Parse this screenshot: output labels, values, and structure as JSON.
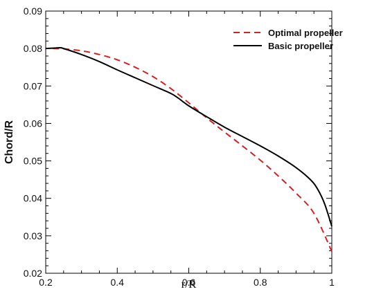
{
  "chart_data": {
    "type": "line",
    "title": "",
    "xlabel": "r/R",
    "ylabel": "Chord/R",
    "xlim": [
      0.2,
      1.0
    ],
    "ylim": [
      0.02,
      0.09
    ],
    "x_ticks": [
      0.2,
      0.4,
      0.6,
      0.8,
      1.0
    ],
    "x_tick_labels": [
      "0.2",
      "0.4",
      "0.6",
      "0.8",
      "1"
    ],
    "y_ticks": [
      0.02,
      0.03,
      0.04,
      0.05,
      0.06,
      0.07,
      0.08,
      0.09
    ],
    "y_tick_labels": [
      "0.02",
      "0.03",
      "0.04",
      "0.05",
      "0.06",
      "0.07",
      "0.08",
      "0.09"
    ],
    "grid": false,
    "legend_position": "top-right",
    "series": [
      {
        "name": "Optimal propeller",
        "color": "#d62020",
        "dash": "dashed",
        "x": [
          0.22,
          0.25,
          0.3,
          0.35,
          0.4,
          0.45,
          0.5,
          0.55,
          0.6,
          0.65,
          0.7,
          0.75,
          0.8,
          0.85,
          0.9,
          0.95,
          1.0
        ],
        "y": [
          0.08,
          0.0799,
          0.0794,
          0.0784,
          0.077,
          0.075,
          0.0725,
          0.0693,
          0.0655,
          0.0615,
          0.0577,
          0.054,
          0.0502,
          0.046,
          0.0414,
          0.036,
          0.0258
        ]
      },
      {
        "name": "Basic propeller",
        "color": "#000000",
        "dash": "solid",
        "x": [
          0.2,
          0.22,
          0.24,
          0.25,
          0.3,
          0.35,
          0.4,
          0.45,
          0.5,
          0.55,
          0.57,
          0.6,
          0.65,
          0.7,
          0.75,
          0.8,
          0.85,
          0.9,
          0.94,
          0.96,
          0.98,
          1.0
        ],
        "y": [
          0.08,
          0.0801,
          0.0802,
          0.08,
          0.0784,
          0.0765,
          0.0743,
          0.0722,
          0.0701,
          0.068,
          0.0668,
          0.0647,
          0.0618,
          0.059,
          0.0565,
          0.054,
          0.0513,
          0.0482,
          0.045,
          0.0425,
          0.0385,
          0.0325
        ]
      }
    ]
  }
}
